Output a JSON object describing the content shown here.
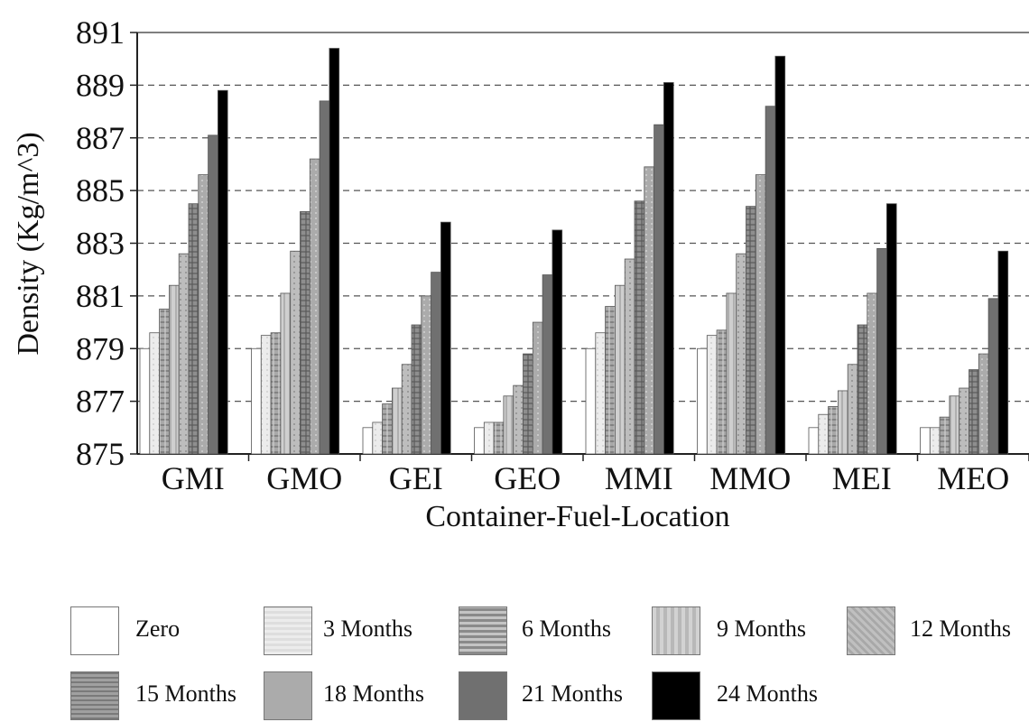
{
  "chart_data": {
    "type": "bar",
    "xlabel": "Container-Fuel-Location",
    "ylabel": "Density (Kg/m^3)",
    "ylim": [
      875,
      891
    ],
    "yticks": [
      875,
      877,
      879,
      881,
      883,
      885,
      887,
      889,
      891
    ],
    "grid": "horizontal dashed",
    "legend_position": "bottom",
    "categories": [
      "GMI",
      "GMO",
      "GEI",
      "GEO",
      "MMI",
      "MMO",
      "MEI",
      "MEO"
    ],
    "series": [
      {
        "name": "Zero",
        "color": "#ffffff",
        "values": [
          879.0,
          879.0,
          876.0,
          876.0,
          879.0,
          879.0,
          876.0,
          876.0
        ]
      },
      {
        "name": "3 Months",
        "color": "#e6e6e6",
        "values": [
          879.6,
          879.5,
          876.2,
          876.2,
          879.6,
          879.5,
          876.5,
          876.0
        ]
      },
      {
        "name": "6 Months",
        "color": "#9e9e9e",
        "values": [
          880.5,
          879.6,
          876.9,
          876.2,
          880.6,
          879.7,
          876.8,
          876.4
        ]
      },
      {
        "name": "9 Months",
        "color": "#c8c8c8",
        "values": [
          881.4,
          881.1,
          877.5,
          877.2,
          881.4,
          881.1,
          877.4,
          877.2
        ]
      },
      {
        "name": "12 Months",
        "color": "#b4b4b4",
        "values": [
          882.6,
          882.7,
          878.4,
          877.6,
          882.4,
          882.6,
          878.4,
          877.5
        ]
      },
      {
        "name": "15 Months",
        "color": "#8a8a8a",
        "values": [
          884.5,
          884.2,
          879.9,
          878.8,
          884.6,
          884.4,
          879.9,
          878.2
        ]
      },
      {
        "name": "18 Months",
        "color": "#a7a7a7",
        "values": [
          885.6,
          886.2,
          881.0,
          880.0,
          885.9,
          885.6,
          881.1,
          878.8
        ]
      },
      {
        "name": "21 Months",
        "color": "#6e6e6e",
        "values": [
          887.1,
          888.4,
          881.9,
          881.8,
          887.5,
          888.2,
          882.8,
          880.9
        ]
      },
      {
        "name": "24 Months",
        "color": "#000000",
        "values": [
          888.8,
          890.4,
          883.8,
          883.5,
          889.1,
          890.1,
          884.5,
          882.7
        ]
      }
    ]
  }
}
